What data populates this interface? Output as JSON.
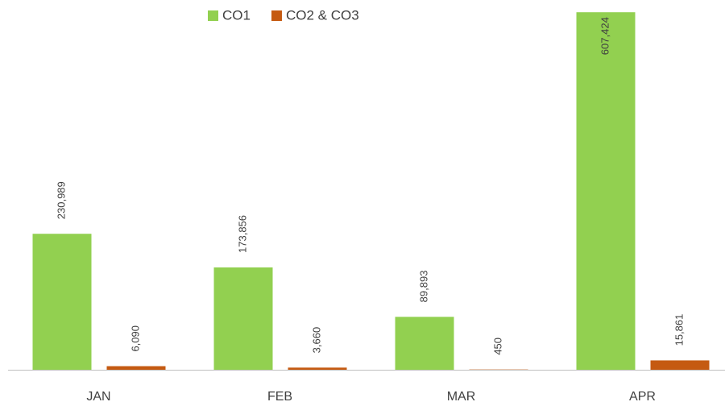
{
  "chart_data": {
    "type": "bar",
    "categories": [
      "JAN",
      "FEB",
      "MAR",
      "APR"
    ],
    "series": [
      {
        "name": "CO1",
        "color": "#92d050",
        "values": [
          230989,
          173856,
          89893,
          607424
        ],
        "value_labels": [
          "230,989",
          "173,856",
          "89,893",
          "607,424"
        ]
      },
      {
        "name": "CO2 & CO3",
        "color": "#c55a11",
        "values": [
          6090,
          3660,
          450,
          15861
        ],
        "value_labels": [
          "6,090",
          "3,660",
          "450",
          "15,861"
        ]
      }
    ],
    "ylim": [
      0,
      620000
    ],
    "legend": "top"
  }
}
